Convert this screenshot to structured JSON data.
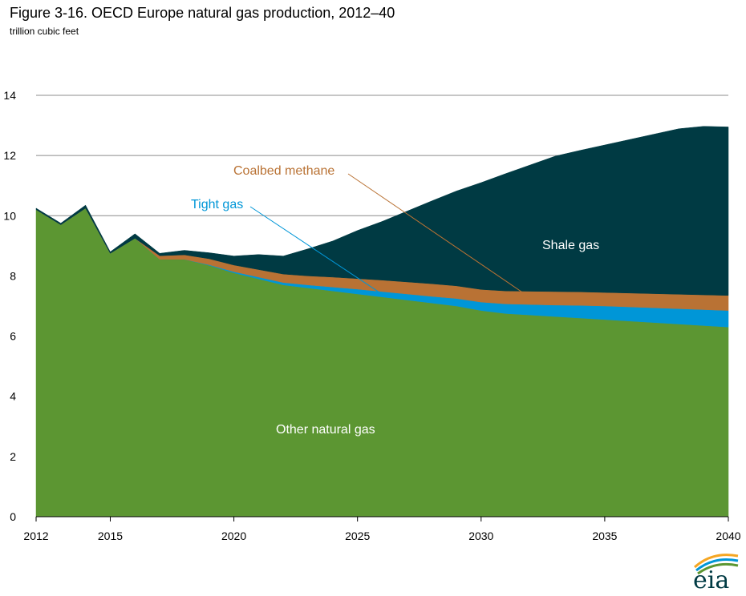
{
  "header": {
    "title": "Figure 3-16. OECD Europe natural gas production, 2012–40",
    "subtitle": "trillion cubic feet"
  },
  "logo": {
    "text": "eia"
  },
  "chart_data": {
    "type": "area",
    "stacked": true,
    "x": [
      2012,
      2013,
      2014,
      2015,
      2016,
      2017,
      2018,
      2019,
      2020,
      2021,
      2022,
      2023,
      2024,
      2025,
      2026,
      2027,
      2028,
      2029,
      2030,
      2031,
      2032,
      2033,
      2034,
      2035,
      2036,
      2037,
      2038,
      2039,
      2040
    ],
    "xticks": [
      2012,
      2015,
      2020,
      2025,
      2030,
      2035,
      2040
    ],
    "yticks": [
      0,
      2,
      4,
      6,
      8,
      10,
      12,
      14
    ],
    "ylim": [
      0,
      14
    ],
    "grid": true,
    "series": [
      {
        "name": "Other natural gas",
        "color": "#5c9632",
        "values": [
          10.2,
          9.7,
          10.25,
          8.75,
          9.25,
          8.55,
          8.55,
          8.35,
          8.1,
          7.9,
          7.7,
          7.6,
          7.5,
          7.4,
          7.3,
          7.2,
          7.1,
          7.0,
          6.85,
          6.75,
          6.7,
          6.65,
          6.6,
          6.55,
          6.5,
          6.45,
          6.4,
          6.35,
          6.3
        ]
      },
      {
        "name": "Tight gas",
        "color": "#0096d7",
        "values": [
          0,
          0,
          0,
          0,
          0,
          0,
          0,
          0.02,
          0.04,
          0.06,
          0.08,
          0.1,
          0.13,
          0.16,
          0.18,
          0.2,
          0.22,
          0.25,
          0.28,
          0.32,
          0.35,
          0.38,
          0.42,
          0.45,
          0.47,
          0.49,
          0.51,
          0.53,
          0.55
        ]
      },
      {
        "name": "Coalbed methane",
        "color": "#b97234",
        "values": [
          0,
          0,
          0,
          0,
          0,
          0.12,
          0.15,
          0.2,
          0.22,
          0.25,
          0.28,
          0.3,
          0.33,
          0.35,
          0.38,
          0.4,
          0.42,
          0.42,
          0.42,
          0.43,
          0.44,
          0.45,
          0.45,
          0.45,
          0.46,
          0.47,
          0.48,
          0.49,
          0.5
        ]
      },
      {
        "name": "Shale gas",
        "color": "#003a43",
        "values": [
          0.05,
          0.05,
          0.1,
          0.05,
          0.15,
          0.08,
          0.15,
          0.2,
          0.3,
          0.5,
          0.6,
          0.9,
          1.2,
          1.6,
          1.95,
          2.35,
          2.75,
          3.15,
          3.55,
          3.9,
          4.2,
          4.5,
          4.7,
          4.9,
          5.1,
          5.3,
          5.5,
          5.6,
          5.6
        ]
      }
    ],
    "annotations": [
      {
        "text": "Coalbed methane",
        "color": "#b97234"
      },
      {
        "text": "Tight gas",
        "color": "#0096d7"
      },
      {
        "text": "Shale gas",
        "color": "#ffffff"
      },
      {
        "text": "Other natural gas",
        "color": "#ffffff"
      }
    ]
  }
}
